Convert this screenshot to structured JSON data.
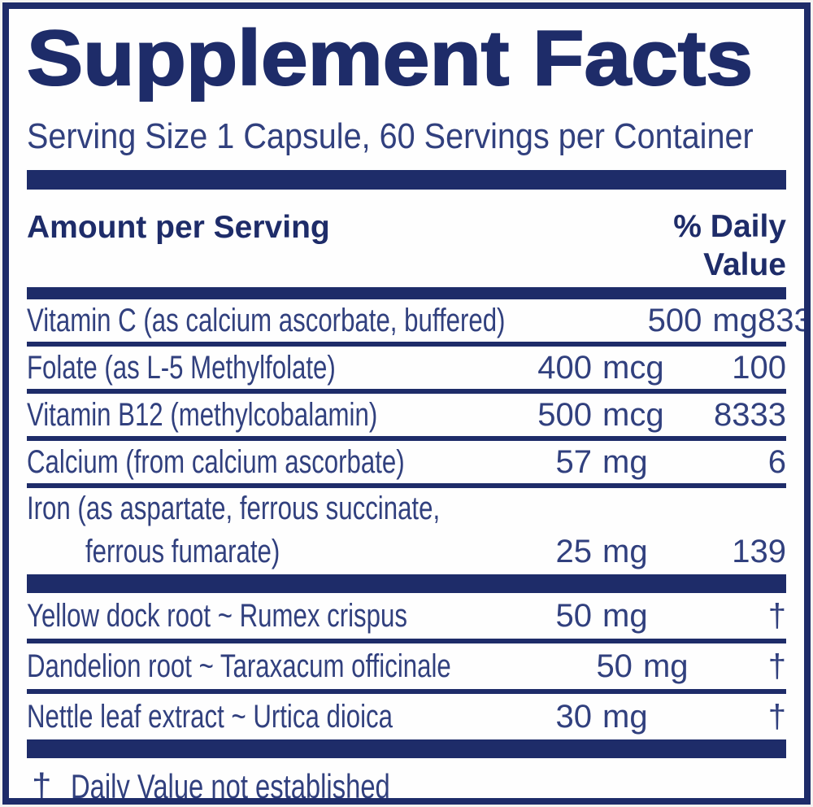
{
  "label": {
    "title": "Supplement Facts",
    "serving_line": "Serving Size 1 Capsule, 60 Servings per Container",
    "header": {
      "amount": "Amount per Serving",
      "dv_line1": "% Daily",
      "dv_line2": "Value"
    },
    "rows": [
      {
        "label": "Vitamin C (as calcium ascorbate, buffered)",
        "label2": "",
        "num": "500",
        "unit": "mg",
        "dv": "833",
        "sep_after": "thin"
      },
      {
        "label": "Folate (as L-5 Methylfolate)",
        "label2": "",
        "num": "400",
        "unit": "mcg",
        "dv": "100",
        "sep_after": "thin"
      },
      {
        "label": "Vitamin B12 (methylcobalamin)",
        "label2": "",
        "num": "500",
        "unit": "mcg",
        "dv": "8333",
        "sep_after": "thin"
      },
      {
        "label": "Calcium (from calcium ascorbate)",
        "label2": "",
        "num": "57",
        "unit": "mg",
        "dv": "6",
        "sep_after": "thin"
      },
      {
        "label": "Iron (as aspartate, ferrous succinate,",
        "label2": "ferrous fumarate)",
        "num": "25",
        "unit": "mg",
        "dv": "139",
        "sep_after": "thick"
      },
      {
        "label": "Yellow dock root ~ Rumex crispus",
        "label2": "",
        "num": "50",
        "unit": "mg",
        "dv": "†",
        "sep_after": "thin",
        "herb": true
      },
      {
        "label": "Dandelion root ~ Taraxacum officinale",
        "label2": "",
        "num": "50",
        "unit": "mg",
        "dv": "†",
        "sep_after": "thin",
        "herb": true
      },
      {
        "label": "Nettle leaf extract ~ Urtica dioica",
        "label2": "",
        "num": "30",
        "unit": "mg",
        "dv": "†",
        "sep_after": "thick",
        "herb": true
      }
    ],
    "footnote": {
      "symbol": "†",
      "text": "Daily Value not established"
    },
    "colors": {
      "navy": "#1e2c69",
      "text": "#31407e",
      "background": "#fefefe"
    }
  }
}
